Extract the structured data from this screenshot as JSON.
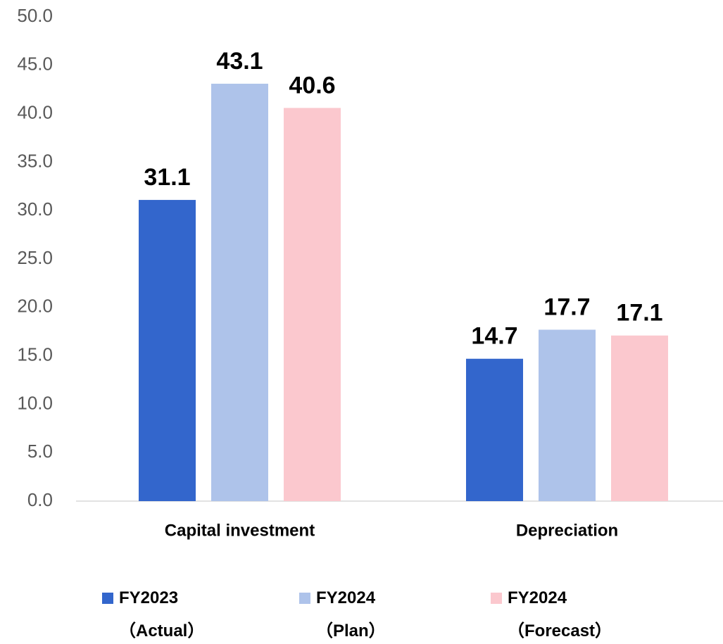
{
  "chart_data": {
    "type": "bar",
    "categories": [
      "Capital investment",
      "Depreciation"
    ],
    "series": [
      {
        "name": "FY2023\n（Actual）",
        "color": "#3366cc",
        "values": [
          31.1,
          14.7
        ]
      },
      {
        "name": "FY2024\n（Plan）",
        "color": "#aec3ea",
        "values": [
          43.1,
          17.7
        ]
      },
      {
        "name": "FY2024\n（Forecast）",
        "color": "#fbc8ce",
        "values": [
          40.6,
          17.1
        ]
      }
    ],
    "ylim": [
      0,
      50
    ],
    "yticks": [
      {
        "value": 0,
        "label": "0.0"
      },
      {
        "value": 5,
        "label": "5.0"
      },
      {
        "value": 10,
        "label": "10.0"
      },
      {
        "value": 15,
        "label": "15.0"
      },
      {
        "value": 20,
        "label": "20.0"
      },
      {
        "value": 25,
        "label": "25.0"
      },
      {
        "value": 30,
        "label": "30.0"
      },
      {
        "value": 35,
        "label": "35.0"
      },
      {
        "value": 40,
        "label": "40.0"
      },
      {
        "value": 45,
        "label": "45.0"
      },
      {
        "value": 50,
        "label": "50.0"
      }
    ],
    "grid": false,
    "legend": "bottom"
  }
}
